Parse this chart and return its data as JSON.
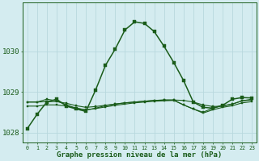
{
  "title": "Graphe pression niveau de la mer (hPa)",
  "bg_color": "#d4ecf0",
  "grid_color": "#b8d8de",
  "line_color": "#1a5c1a",
  "ylim": [
    1027.75,
    1031.2
  ],
  "yticks": [
    1028,
    1029,
    1030
  ],
  "figsize": [
    3.2,
    2.0
  ],
  "dpi": 100,
  "series1": [
    1028.1,
    1028.45,
    1028.75,
    1028.82,
    1028.65,
    1028.58,
    1028.52,
    1029.05,
    1029.65,
    1030.05,
    1030.52,
    1030.72,
    1030.68,
    1030.48,
    1030.12,
    1029.72,
    1029.28,
    1028.75,
    1028.62,
    1028.6,
    1028.67,
    1028.82,
    1028.86,
    1028.85
  ],
  "series2": [
    1028.75,
    1028.75,
    1028.82,
    1028.78,
    1028.68,
    1028.6,
    1028.55,
    1028.6,
    1028.66,
    1028.7,
    1028.73,
    1028.75,
    1028.77,
    1028.79,
    1028.8,
    1028.8,
    1028.68,
    1028.58,
    1028.5,
    1028.6,
    1028.66,
    1028.7,
    1028.78,
    1028.8
  ],
  "series3": [
    1028.75,
    1028.75,
    1028.76,
    1028.76,
    1028.72,
    1028.66,
    1028.62,
    1028.64,
    1028.67,
    1028.7,
    1028.73,
    1028.75,
    1028.77,
    1028.79,
    1028.8,
    1028.8,
    1028.79,
    1028.75,
    1028.68,
    1028.64,
    1028.65,
    1028.7,
    1028.78,
    1028.82
  ],
  "series4": [
    1028.65,
    1028.65,
    1028.68,
    1028.68,
    1028.65,
    1028.6,
    1028.56,
    1028.59,
    1028.63,
    1028.67,
    1028.7,
    1028.73,
    1028.75,
    1028.77,
    1028.78,
    1028.79,
    1028.68,
    1028.58,
    1028.48,
    1028.56,
    1028.62,
    1028.66,
    1028.73,
    1028.76
  ]
}
